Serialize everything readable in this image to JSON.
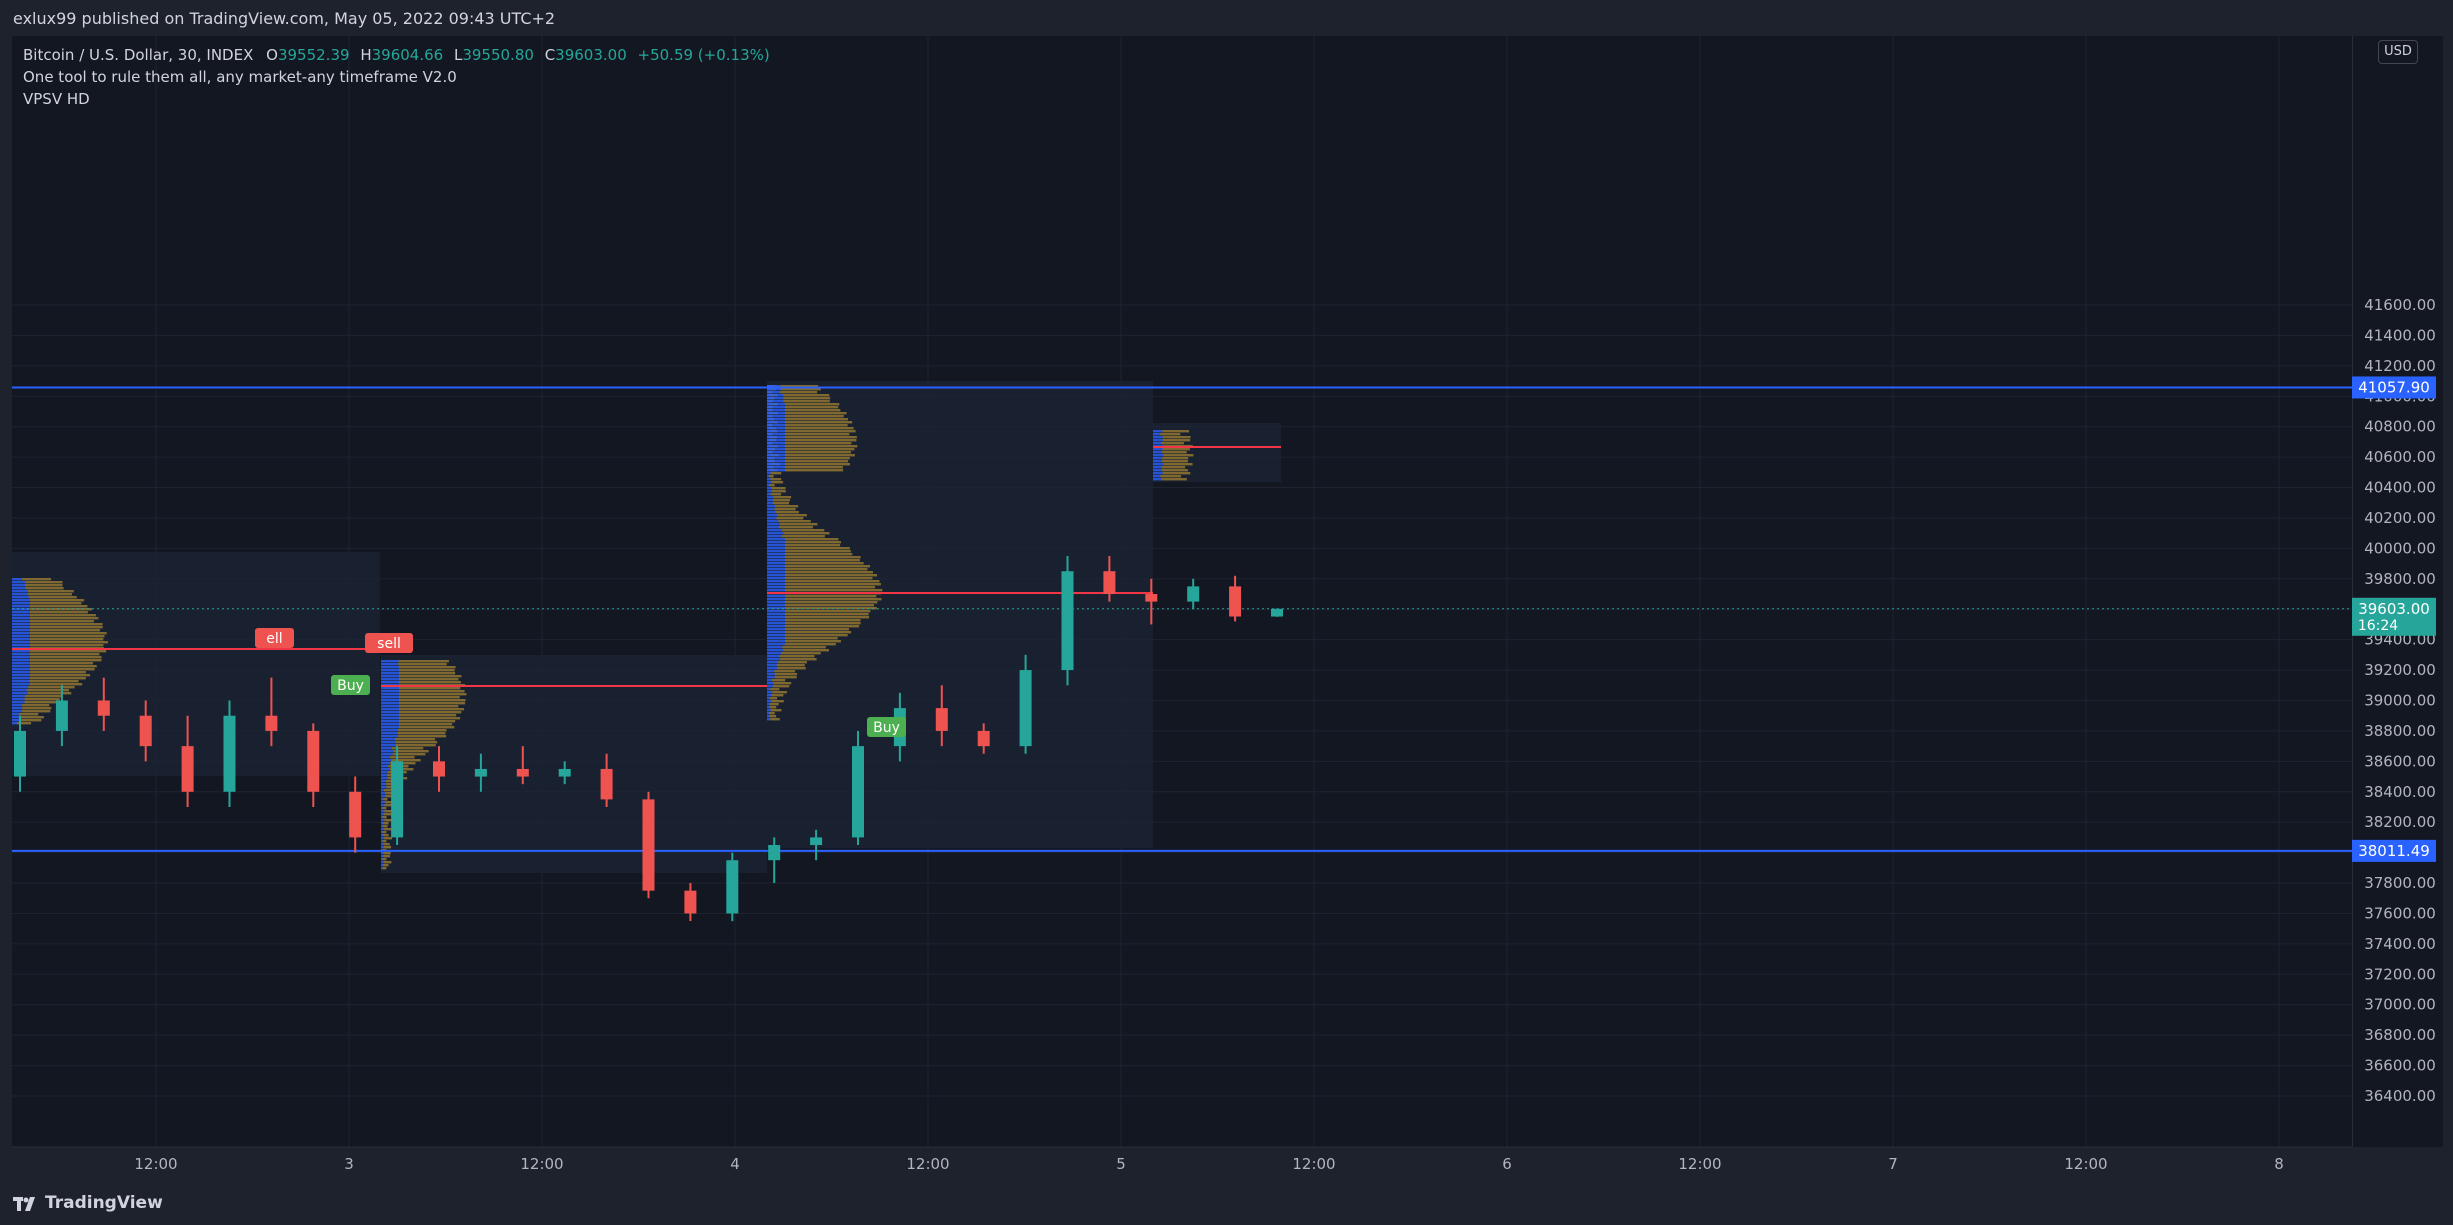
{
  "header": {
    "publish_line": "exlux99 published on TradingView.com, May 05, 2022 09:43 UTC+2"
  },
  "legend": {
    "symbol": "Bitcoin / U.S. Dollar, 30, INDEX",
    "open_label": "O",
    "open": "39552.39",
    "high_label": "H",
    "high": "39604.66",
    "low_label": "L",
    "low": "39550.80",
    "close_label": "C",
    "close": "39603.00",
    "change": "+50.59 (+0.13%)",
    "indicator_1": "One tool to rule them all, any market-any timeframe V2.0",
    "indicator_2": "VPSV HD"
  },
  "price_scale": {
    "currency": "USD",
    "ticks": [
      "41600.00",
      "41400.00",
      "41200.00",
      "41000.00",
      "40800.00",
      "40600.00",
      "40400.00",
      "40200.00",
      "40000.00",
      "39800.00",
      "39600.00",
      "39400.00",
      "39200.00",
      "39000.00",
      "38800.00",
      "38600.00",
      "38400.00",
      "38200.00",
      "38000.00",
      "37800.00",
      "37600.00",
      "37400.00",
      "37200.00",
      "37000.00",
      "36800.00",
      "36600.00",
      "36400.00"
    ],
    "resistance_label": "41057.90",
    "support_label": "38011.49",
    "last_price_label": "39603.00",
    "countdown_label": "16:24"
  },
  "time_axis": {
    "ticks": [
      "12:00",
      "3",
      "12:00",
      "4",
      "12:00",
      "5",
      "12:00",
      "6",
      "12:00",
      "7",
      "12:00",
      "8"
    ]
  },
  "signals": [
    {
      "text": "ell",
      "type": "sell"
    },
    {
      "text": "sell",
      "type": "sell"
    },
    {
      "text": "Buy",
      "type": "buy"
    },
    {
      "text": "Buy",
      "type": "buy"
    }
  ],
  "footer": {
    "brand": "TradingView"
  },
  "colors": {
    "bull": "#26a69a",
    "bear": "#ef5350",
    "level_line": "#2962ff",
    "poc_line": "#f23645",
    "profile_up": "#d4a531",
    "profile_blue": "#2962ff",
    "box": "#1c2535",
    "badge_blue": "#2962ff",
    "badge_teal": "#26a69a"
  },
  "chart_data": {
    "type": "candlestick",
    "interval": "30",
    "y_range": [
      36300,
      41800
    ],
    "levels": [
      41057.9,
      38011.49
    ],
    "last_price": 39603.0,
    "candles_ohlc_approx": [
      [
        38500,
        38900,
        38400,
        38800
      ],
      [
        38800,
        39100,
        38700,
        39000
      ],
      [
        39000,
        39150,
        38800,
        38900
      ],
      [
        38900,
        39000,
        38600,
        38700
      ],
      [
        38700,
        38900,
        38300,
        38400
      ],
      [
        38400,
        39000,
        38300,
        38900
      ],
      [
        38900,
        39150,
        38700,
        38800
      ],
      [
        38800,
        38850,
        38300,
        38400
      ],
      [
        38400,
        38500,
        38000,
        38100
      ],
      [
        38100,
        38700,
        38050,
        38600
      ],
      [
        38600,
        38700,
        38400,
        38500
      ],
      [
        38500,
        38650,
        38400,
        38550
      ],
      [
        38550,
        38700,
        38450,
        38500
      ],
      [
        38500,
        38600,
        38450,
        38550
      ],
      [
        38550,
        38650,
        38300,
        38350
      ],
      [
        38350,
        38400,
        37700,
        37750
      ],
      [
        37750,
        37800,
        37550,
        37600
      ],
      [
        37600,
        38000,
        37550,
        37950
      ],
      [
        37950,
        38100,
        37800,
        38050
      ],
      [
        38050,
        38150,
        37950,
        38100
      ],
      [
        38100,
        38800,
        38050,
        38700
      ],
      [
        38700,
        39050,
        38600,
        38950
      ],
      [
        38950,
        39100,
        38700,
        38800
      ],
      [
        38800,
        38850,
        38650,
        38700
      ],
      [
        38700,
        39300,
        38650,
        39200
      ],
      [
        39200,
        39950,
        39100,
        39850
      ],
      [
        39850,
        39950,
        39650,
        39700
      ],
      [
        39700,
        39800,
        39500,
        39650
      ],
      [
        39650,
        39800,
        39600,
        39750
      ],
      [
        39750,
        39820,
        39520,
        39552
      ],
      [
        39552,
        39604,
        39550,
        39603
      ]
    ]
  }
}
